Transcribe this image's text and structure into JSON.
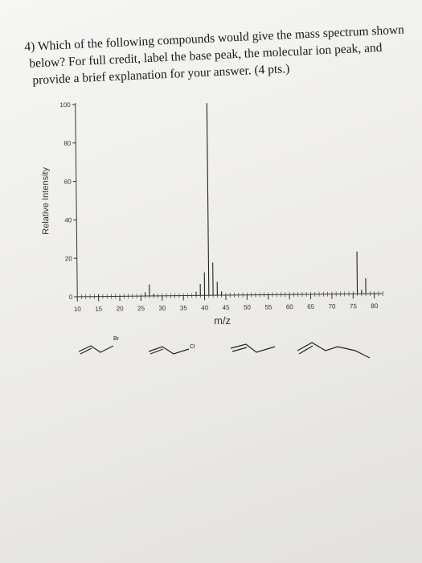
{
  "question": {
    "number": "4)",
    "line1": "Which of the following compounds would give the mass spectrum shown",
    "line2": "below? For full credit, label the base peak, the molecular ion peak, and",
    "line3": "provide a brief explanation for your answer. (4 pts.)"
  },
  "chart_data": {
    "type": "bar",
    "xlabel": "m/z",
    "ylabel": "Relative Intensity",
    "xlim": [
      10,
      82
    ],
    "ylim": [
      0,
      100
    ],
    "x_ticks": [
      "10",
      "15",
      "20",
      "25",
      "30",
      "35",
      "40",
      "45",
      "50",
      "55",
      "60",
      "65",
      "70",
      "75",
      "80"
    ],
    "y_ticks": [
      "0",
      "20",
      "40",
      "60",
      "80",
      "100"
    ],
    "grid": false,
    "peaks": [
      {
        "x": 15,
        "y": 1
      },
      {
        "x": 26,
        "y": 2
      },
      {
        "x": 27,
        "y": 6
      },
      {
        "x": 28,
        "y": 1
      },
      {
        "x": 38,
        "y": 2
      },
      {
        "x": 39,
        "y": 6
      },
      {
        "x": 40,
        "y": 12
      },
      {
        "x": 41,
        "y": 100
      },
      {
        "x": 42,
        "y": 17
      },
      {
        "x": 43,
        "y": 7
      },
      {
        "x": 44,
        "y": 2
      },
      {
        "x": 76,
        "y": 22
      },
      {
        "x": 77,
        "y": 2
      },
      {
        "x": 78,
        "y": 8
      }
    ]
  },
  "structures": [
    {
      "substituent": "Br"
    },
    {
      "substituent": "Cl"
    },
    {
      "substituent": ""
    },
    {
      "substituent": ""
    }
  ]
}
